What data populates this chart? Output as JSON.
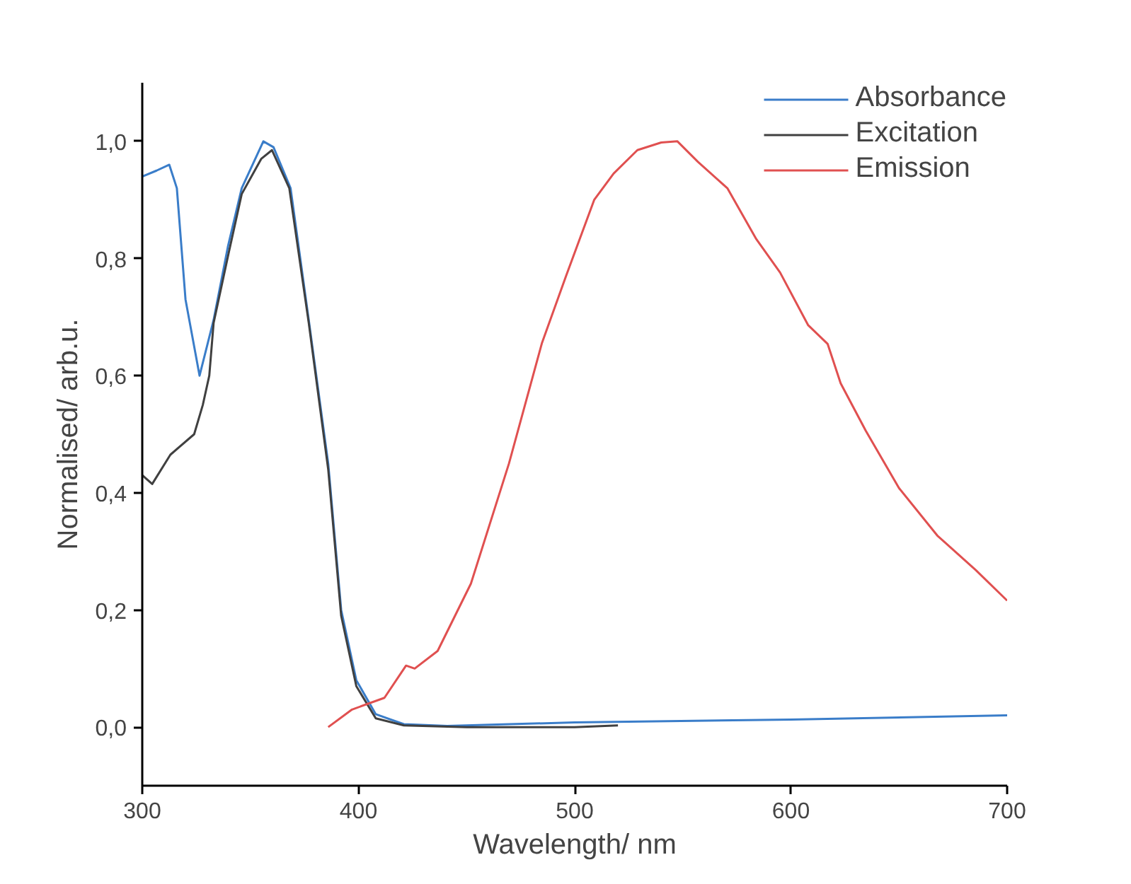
{
  "chart_data": {
    "type": "line",
    "xlabel": "Wavelength/ nm",
    "ylabel": "Normalised/ arb.u.",
    "xlim": [
      300,
      700
    ],
    "ylim": [
      -0.1,
      1.1
    ],
    "xticks": [
      300,
      400,
      500,
      600,
      700
    ],
    "yticks": [
      {
        "value": 0.0,
        "label": "0,0"
      },
      {
        "value": 0.2,
        "label": "0,2"
      },
      {
        "value": 0.4,
        "label": "0,4"
      },
      {
        "value": 0.6,
        "label": "0,6"
      },
      {
        "value": 0.8,
        "label": "0,8"
      },
      {
        "value": 1.0,
        "label": "1,0"
      }
    ],
    "grid": false,
    "legend": "top right",
    "line_style": "solid",
    "marker": "none",
    "series": [
      {
        "name": "Absorbance",
        "color": "#3a7dc9",
        "x": [
          300,
          306.6,
          312.5,
          316,
          320,
          326.5,
          333,
          339.6,
          346,
          356,
          360.7,
          368.6,
          377,
          386,
          392,
          399,
          408,
          421,
          441,
          500,
          600,
          700
        ],
        "values": [
          0.94,
          0.95,
          0.96,
          0.92,
          0.73,
          0.6,
          0.695,
          0.82,
          0.92,
          1.0,
          0.99,
          0.92,
          0.695,
          0.45,
          0.2,
          0.08,
          0.022,
          0.005,
          0.002,
          0.008,
          0.013,
          0.02
        ]
      },
      {
        "name": "Excitation",
        "color": "#404040",
        "x": [
          300,
          304.6,
          313,
          324,
          328,
          331,
          333,
          340,
          346,
          355,
          360,
          368,
          377,
          386,
          392,
          399,
          408,
          421,
          450,
          500,
          520
        ],
        "values": [
          0.43,
          0.415,
          0.465,
          0.5,
          0.55,
          0.6,
          0.69,
          0.81,
          0.91,
          0.97,
          0.985,
          0.92,
          0.69,
          0.44,
          0.19,
          0.07,
          0.015,
          0.003,
          0.0,
          0.0,
          0.003
        ]
      },
      {
        "name": "Emission",
        "color": "#e05050",
        "x": [
          386,
          397,
          412,
          422,
          426,
          436.6,
          452,
          469.6,
          484.8,
          496,
          509,
          518,
          529,
          540,
          547.5,
          557,
          570.6,
          584,
          595,
          608,
          617,
          623,
          634.6,
          650,
          667.7,
          685.5,
          700
        ],
        "values": [
          0.0,
          0.03,
          0.05,
          0.105,
          0.1,
          0.13,
          0.245,
          0.45,
          0.655,
          0.77,
          0.9,
          0.945,
          0.985,
          0.998,
          1.0,
          0.965,
          0.92,
          0.833,
          0.776,
          0.686,
          0.654,
          0.587,
          0.506,
          0.408,
          0.327,
          0.268,
          0.216
        ]
      }
    ]
  }
}
